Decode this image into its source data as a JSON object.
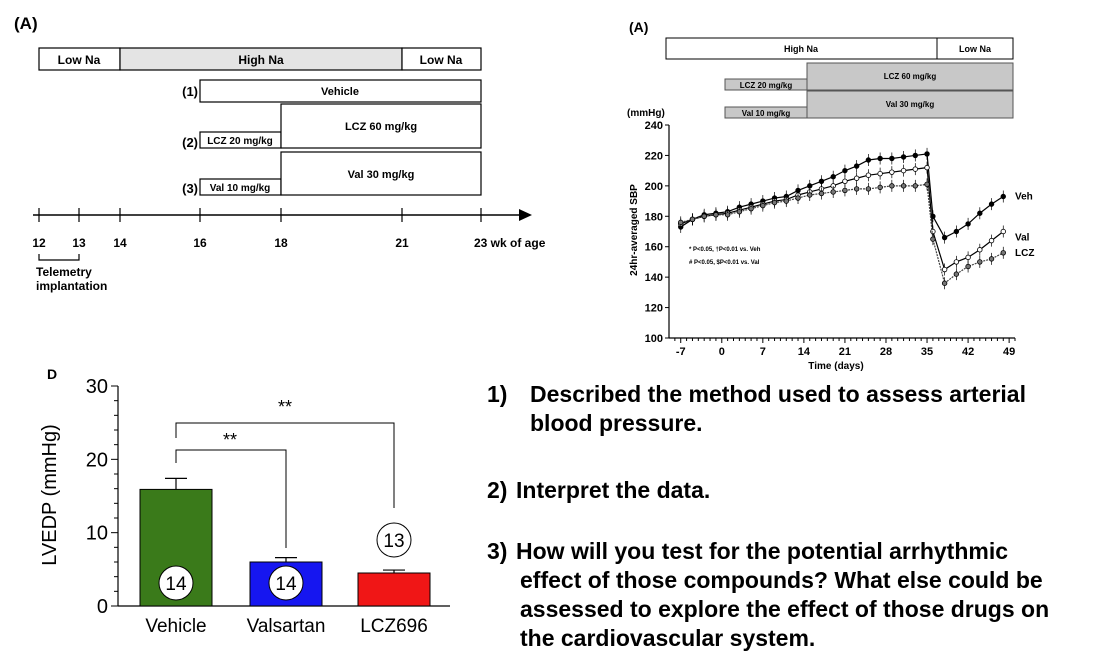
{
  "schematic": {
    "panel_label": "(A)",
    "phases": [
      "Low Na",
      "High Na",
      "Low Na"
    ],
    "groups": [
      {
        "num": "(1)",
        "label": "Vehicle"
      },
      {
        "num": "(2)",
        "initial": "LCZ  20 mg/kg",
        "label": "LCZ 60 mg/kg"
      },
      {
        "num": "(3)",
        "initial": "Val  10 mg/kg",
        "label": "Val 30 mg/kg"
      }
    ],
    "ticks": [
      "12",
      "13",
      "14",
      "16",
      "18",
      "21",
      "23 wk of age"
    ],
    "telemetry_note": [
      "Telemetry",
      "implantation"
    ]
  },
  "chart_data": [
    {
      "type": "line",
      "panel_label": "(A)",
      "phases": [
        "High Na",
        "Low Na"
      ],
      "treatments": [
        "LCZ 20 mg/kg",
        "LCZ 60 mg/kg",
        "Val 10 mg/kg",
        "Val 30 mg/kg"
      ],
      "unit": "(mmHg)",
      "ylabel": "24hr-averaged SBP",
      "xlabel": "Time (days)",
      "ylim": [
        100,
        240
      ],
      "yticks": [
        100,
        120,
        140,
        160,
        180,
        200,
        220,
        240
      ],
      "xlim": [
        -9,
        50
      ],
      "xticks": [
        -7,
        0,
        7,
        14,
        21,
        28,
        35,
        42,
        49
      ],
      "legend_notes": [
        "* P<0.05, †P<0.01 vs. Veh",
        "# P<0.05, $P<0.01 vs. Val"
      ],
      "x": [
        -7,
        -5,
        -3,
        -1,
        1,
        3,
        5,
        7,
        9,
        11,
        13,
        15,
        17,
        19,
        21,
        23,
        25,
        27,
        29,
        31,
        33,
        35,
        36,
        38,
        40,
        42,
        44,
        46,
        48
      ],
      "series": [
        {
          "name": "Veh",
          "values": [
            173,
            178,
            181,
            182,
            183,
            186,
            188,
            190,
            192,
            193,
            197,
            200,
            203,
            206,
            210,
            213,
            217,
            218,
            218,
            219,
            220,
            221,
            180,
            166,
            170,
            175,
            182,
            188,
            193
          ]
        },
        {
          "name": "Val",
          "values": [
            175,
            178,
            180,
            181,
            182,
            184,
            186,
            188,
            190,
            191,
            194,
            196,
            198,
            200,
            203,
            205,
            207,
            208,
            209,
            210,
            211,
            212,
            170,
            145,
            150,
            153,
            158,
            164,
            170
          ]
        },
        {
          "name": "LCZ",
          "values": [
            176,
            178,
            180,
            181,
            181,
            183,
            185,
            187,
            189,
            190,
            192,
            194,
            195,
            196,
            197,
            198,
            198,
            199,
            200,
            200,
            200,
            201,
            165,
            136,
            142,
            147,
            150,
            152,
            156
          ]
        }
      ]
    },
    {
      "type": "bar",
      "panel_label": "D",
      "ylabel": "LVEDP (mmHg)",
      "ylim": [
        0,
        30
      ],
      "yticks": [
        0,
        10,
        20,
        30
      ],
      "categories": [
        "Vehicle",
        "Valsartan",
        "LCZ696"
      ],
      "values": [
        15.9,
        6.0,
        4.5
      ],
      "errors": [
        1.5,
        0.6,
        0.4
      ],
      "n": [
        "14",
        "14",
        "13"
      ],
      "colors": [
        "#3a7a1a",
        "#1616f0",
        "#f01616"
      ],
      "significance": [
        "**",
        "**"
      ]
    }
  ],
  "questions": [
    {
      "num": "1)",
      "lines": [
        "Described the method used to assess arterial",
        "blood pressure."
      ]
    },
    {
      "num": "2)",
      "lines": [
        "Interpret the data."
      ]
    },
    {
      "num": "3)",
      "lines": [
        "How will you test for the potential arrhythmic",
        "effect of those compounds? What else could be",
        "assessed to explore the effect of those drugs on",
        "the cardiovascular system."
      ]
    }
  ]
}
